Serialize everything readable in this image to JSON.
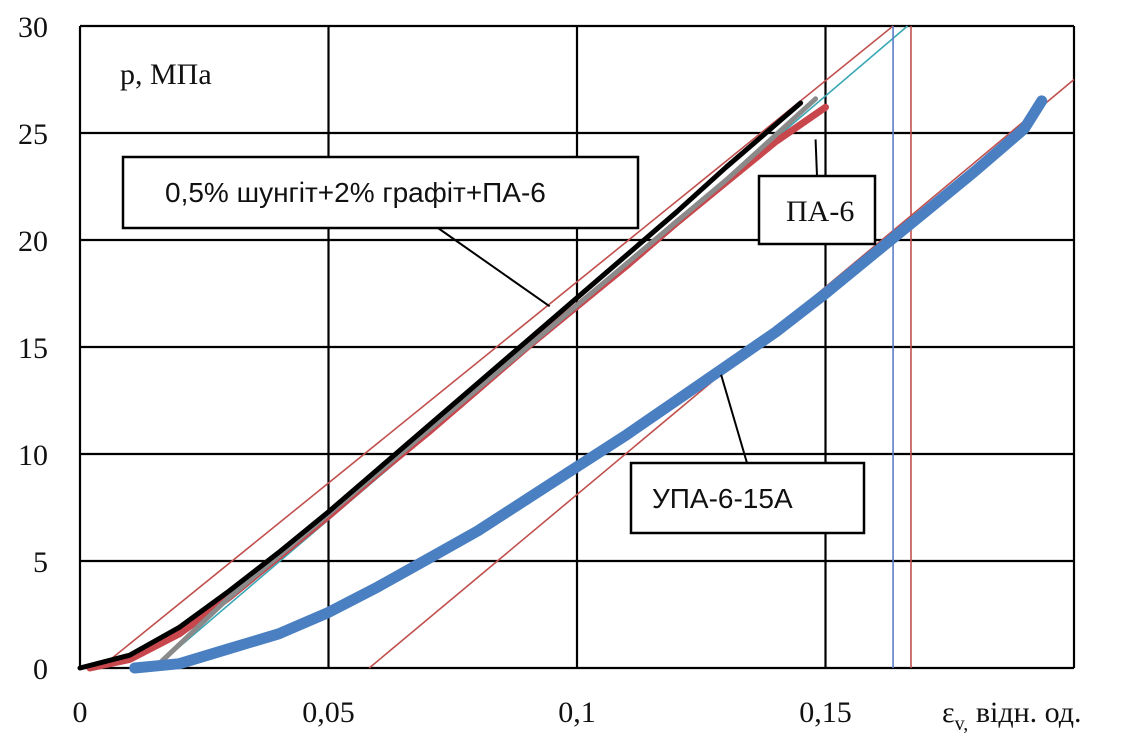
{
  "chart_data": {
    "type": "line",
    "title": "",
    "ylabel": "p, МПа",
    "xlabel": "εv, відн. од.",
    "xlabel_main": "ε",
    "xlabel_sub": "v,",
    "xlabel_rest": " відн. од.",
    "xlim": [
      0,
      0.2
    ],
    "ylim": [
      0,
      30
    ],
    "xticks": [
      0,
      0.05,
      0.1,
      0.15
    ],
    "xtick_labels": [
      "0",
      "0,05",
      "0,1",
      "0,15"
    ],
    "yticks": [
      0,
      5,
      10,
      15,
      20,
      25,
      30
    ],
    "ytick_labels": [
      "0",
      "5",
      "10",
      "15",
      "20",
      "25",
      "30"
    ],
    "grid": true,
    "series": [
      {
        "name": "0,5% шунгіт+2% графіт+ПА-6",
        "color": "#000000",
        "x": [
          0,
          0.01,
          0.02,
          0.03,
          0.04,
          0.05,
          0.06,
          0.07,
          0.08,
          0.09,
          0.1,
          0.11,
          0.12,
          0.13,
          0.14,
          0.145
        ],
        "y": [
          0,
          0.6,
          1.9,
          3.6,
          5.4,
          7.3,
          9.3,
          11.3,
          13.3,
          15.3,
          17.3,
          19.3,
          21.3,
          23.4,
          25.4,
          26.4
        ]
      },
      {
        "name": "ПА-6",
        "color": "#c8474d",
        "x": [
          0.002,
          0.01,
          0.02,
          0.03,
          0.04,
          0.05,
          0.06,
          0.07,
          0.08,
          0.09,
          0.1,
          0.11,
          0.12,
          0.13,
          0.14,
          0.15
        ],
        "y": [
          0,
          0.4,
          1.6,
          3.3,
          5.2,
          7.1,
          9.1,
          11.0,
          13.0,
          15.0,
          16.9,
          18.8,
          20.8,
          22.7,
          24.6,
          26.2
        ]
      },
      {
        "name": "УПА-6-15А",
        "color": "#4a7fc1",
        "x": [
          0.011,
          0.02,
          0.03,
          0.04,
          0.05,
          0.06,
          0.07,
          0.08,
          0.09,
          0.1,
          0.11,
          0.12,
          0.13,
          0.14,
          0.15,
          0.16,
          0.17,
          0.18,
          0.19,
          0.1935
        ],
        "y": [
          0,
          0.2,
          0.9,
          1.6,
          2.6,
          3.8,
          5.1,
          6.4,
          7.9,
          9.4,
          10.9,
          12.5,
          14.1,
          15.7,
          17.5,
          19.4,
          21.3,
          23.2,
          25.2,
          26.5
        ]
      },
      {
        "name": "",
        "color": "#8a8a8a",
        "x": [
          0.015,
          0.03,
          0.05,
          0.07,
          0.09,
          0.11,
          0.13,
          0.148
        ],
        "y": [
          0,
          3.3,
          7.2,
          11.1,
          15.0,
          18.9,
          22.8,
          26.6
        ]
      }
    ],
    "tangent_lines": [
      {
        "color": "#c0504d",
        "x": [
          0.004,
          0.1636
        ],
        "y": [
          0,
          30
        ]
      },
      {
        "color": "#3aa8b5",
        "x": [
          0.015,
          0.1665
        ],
        "y": [
          0,
          30
        ]
      },
      {
        "color": "#c0504d",
        "x": [
          0.0582,
          0.2
        ],
        "y": [
          0,
          27.5
        ]
      }
    ],
    "vertical_lines": [
      {
        "color": "#5b7fc8",
        "x": 0.1636
      },
      {
        "color": "#c0504d",
        "x": 0.1672
      }
    ],
    "annotations": [
      {
        "text": "0,5% шунгіт+2% графіт+ПА-6",
        "target": [
          0.0945,
          16.9
        ]
      },
      {
        "text": "ПА-6",
        "target": [
          0.148,
          24.7
        ]
      },
      {
        "text": "УПА-6-15А",
        "target": [
          0.129,
          13.7
        ]
      }
    ]
  }
}
